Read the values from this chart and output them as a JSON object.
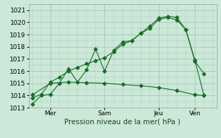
{
  "background_color": "#cce8d8",
  "plot_bg_color": "#cce8d8",
  "grid_color": "#aaccbb",
  "line_color": "#1a6e2a",
  "ylim": [
    1013,
    1021.5
  ],
  "yticks": [
    1013,
    1014,
    1015,
    1016,
    1017,
    1018,
    1019,
    1020,
    1021
  ],
  "xlabel": "Pression niveau de la mer( hPa )",
  "xlabel_fontsize": 7.5,
  "tick_fontsize": 6.5,
  "day_labels": [
    "| Mer",
    "Sam",
    "Jeu",
    "| Ven"
  ],
  "day_positions": [
    1,
    4,
    7,
    9
  ],
  "xlim": [
    -0.2,
    10.2
  ],
  "line1_x": [
    0,
    0.5,
    1,
    1.5,
    2,
    2.5,
    3,
    3.5,
    4,
    4.5,
    5,
    5.5,
    6,
    6.5,
    7,
    7.5,
    8,
    8.5,
    9,
    9.5
  ],
  "line1_y": [
    1013.3,
    1014.0,
    1014.1,
    1015.0,
    1016.2,
    1015.1,
    1016.1,
    1017.8,
    1016.0,
    1017.7,
    1018.4,
    1018.5,
    1019.1,
    1019.7,
    1020.35,
    1020.5,
    1020.4,
    1019.4,
    1016.9,
    1014.0
  ],
  "line2_x": [
    0,
    0.5,
    1,
    1.5,
    2,
    2.5,
    3,
    3.5,
    4,
    4.5,
    5,
    5.5,
    6,
    6.5,
    7,
    7.5,
    8,
    8.5,
    9,
    9.5
  ],
  "line2_y": [
    1013.8,
    1014.1,
    1015.1,
    1015.5,
    1016.0,
    1016.3,
    1016.6,
    1016.85,
    1017.1,
    1017.6,
    1018.2,
    1018.5,
    1019.1,
    1019.5,
    1020.25,
    1020.4,
    1020.2,
    1019.4,
    1016.8,
    1015.8
  ],
  "line3_x": [
    0,
    1,
    2,
    3,
    4,
    5,
    6,
    7,
    8,
    9,
    9.5
  ],
  "line3_y": [
    1014.05,
    1015.0,
    1015.1,
    1015.05,
    1015.0,
    1014.9,
    1014.8,
    1014.65,
    1014.4,
    1014.05,
    1014.0
  ]
}
